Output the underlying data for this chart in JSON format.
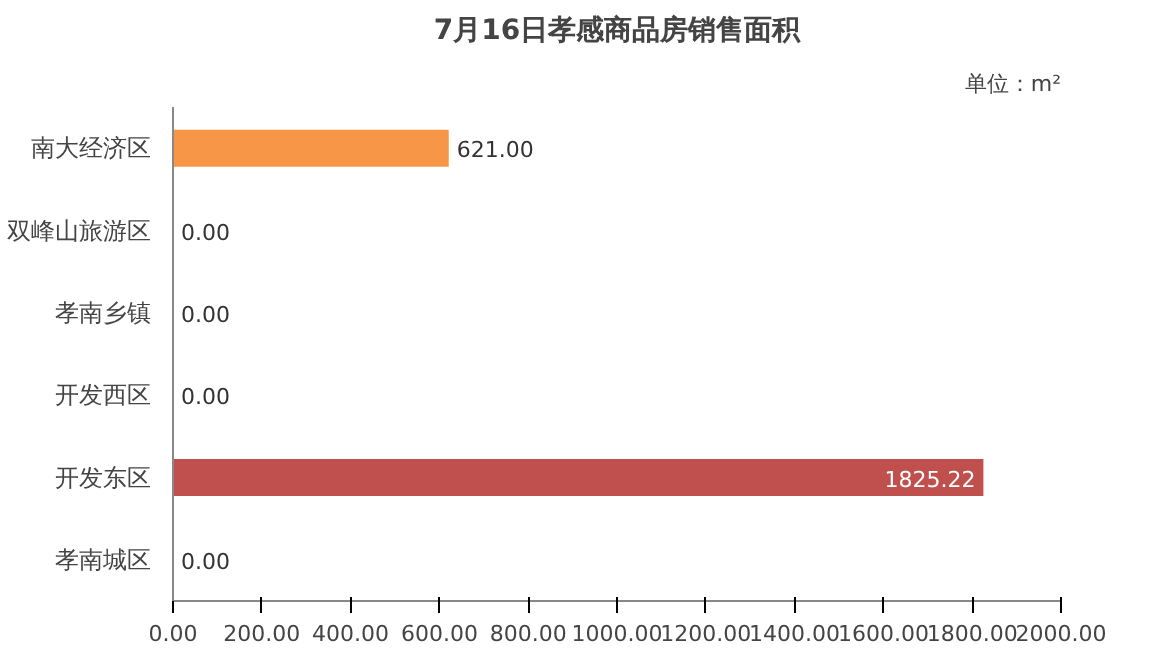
{
  "chart_data": {
    "type": "bar",
    "orientation": "horizontal",
    "title": "7月16日孝感商品房销售面积",
    "annotations": [
      "单位：m²"
    ],
    "categories": [
      "南大经济区",
      "双峰山旅游区",
      "孝南乡镇",
      "开发西区",
      "开发东区",
      "孝南城区"
    ],
    "values": [
      621.0,
      0.0,
      0.0,
      0.0,
      1825.22,
      0.0
    ],
    "colors": [
      "#f79646",
      "#c0504d",
      "#c0504d",
      "#c0504d",
      "#c0504d",
      "#c0504d"
    ],
    "value_labels": [
      "621.00",
      "0.00",
      "0.00",
      "0.00",
      "1825.22",
      "0.00"
    ],
    "xlim": [
      0,
      2000
    ],
    "xticks": [
      {
        "value": 0,
        "label": "0.00"
      },
      {
        "value": 200,
        "label": "200.00"
      },
      {
        "value": 400,
        "label": "400.00"
      },
      {
        "value": 600,
        "label": "600.00"
      },
      {
        "value": 800,
        "label": "800.00"
      },
      {
        "value": 1000,
        "label": "1000.00"
      },
      {
        "value": 1200,
        "label": "1200.00"
      },
      {
        "value": 1400,
        "label": "1400.00"
      },
      {
        "value": 1600,
        "label": "1600.00"
      },
      {
        "value": 1800,
        "label": "1800.00"
      },
      {
        "value": 2000,
        "label": "2000.00"
      }
    ],
    "grid": false
  }
}
